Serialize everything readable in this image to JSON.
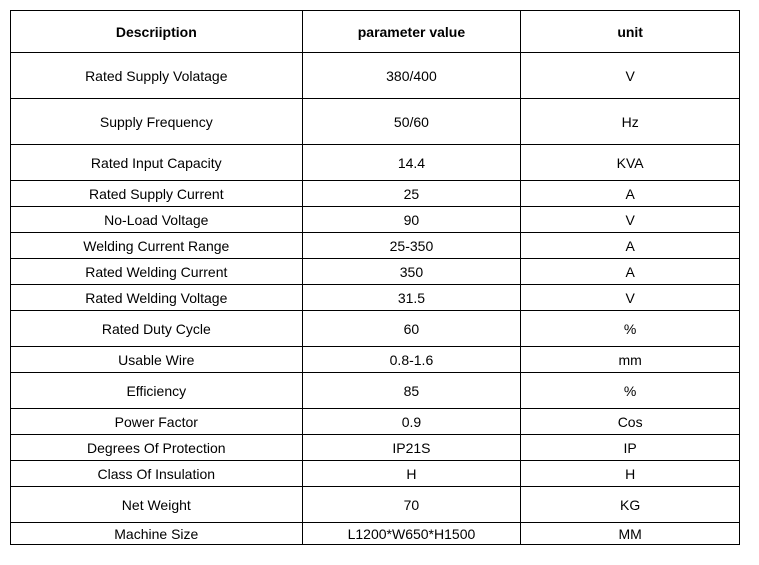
{
  "table": {
    "type": "table",
    "background_color": "#ffffff",
    "border_color": "#000000",
    "text_color": "#000000",
    "header_fontsize": 14,
    "cell_fontsize": 14,
    "header_fontweight": "bold",
    "cell_fontweight": "normal",
    "columns": [
      {
        "label": "Descriiption",
        "width_pct": 40,
        "align": "center"
      },
      {
        "label": "parameter value",
        "width_pct": 30,
        "align": "center"
      },
      {
        "label": "unit",
        "width_pct": 30,
        "align": "center"
      }
    ],
    "rows": [
      {
        "desc": "Rated Supply Volatage",
        "value": "380/400",
        "unit": "V",
        "h": "h-tall"
      },
      {
        "desc": "Supply Frequency",
        "value": "50/60",
        "unit": "Hz",
        "h": "h-tall"
      },
      {
        "desc": "Rated Input Capacity",
        "value": "14.4",
        "unit": "KVA",
        "h": "h-med"
      },
      {
        "desc": "Rated Supply Current",
        "value": "25",
        "unit": "A",
        "h": "h-short"
      },
      {
        "desc": "No-Load Voltage",
        "value": "90",
        "unit": "V",
        "h": "h-short"
      },
      {
        "desc": "Welding Current Range",
        "value": "25-350",
        "unit": "A",
        "h": "h-short"
      },
      {
        "desc": "Rated Welding Current",
        "value": "350",
        "unit": "A",
        "h": "h-short"
      },
      {
        "desc": "Rated Welding Voltage",
        "value": "31.5",
        "unit": "V",
        "h": "h-short"
      },
      {
        "desc": "Rated Duty Cycle",
        "value": "60",
        "unit": "%",
        "h": "h-med"
      },
      {
        "desc": "Usable Wire",
        "value": "0.8-1.6",
        "unit": "mm",
        "h": "h-short"
      },
      {
        "desc": "Efficiency",
        "value": "85",
        "unit": "%",
        "h": "h-med"
      },
      {
        "desc": "Power Factor",
        "value": "0.9",
        "unit": "Cos",
        "h": "h-short"
      },
      {
        "desc": "Degrees Of Protection",
        "value": "IP21S",
        "unit": "IP",
        "h": "h-short"
      },
      {
        "desc": "Class Of Insulation",
        "value": "H",
        "unit": "H",
        "h": "h-short"
      },
      {
        "desc": "Net Weight",
        "value": "70",
        "unit": "KG",
        "h": "h-med"
      },
      {
        "desc": "Machine Size",
        "value": "L1200*W650*H1500",
        "unit": "MM",
        "h": "h-vshort"
      }
    ]
  }
}
